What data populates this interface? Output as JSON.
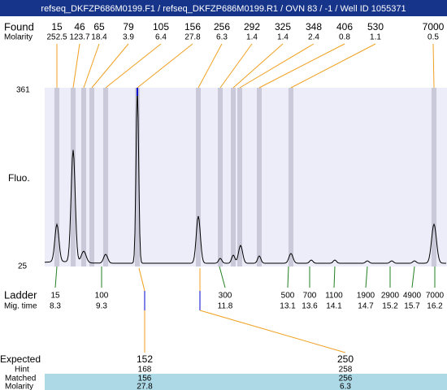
{
  "header": {
    "title": "refseq_DKFZP686M0199.F1 / refseq_DKFZP686M0199.R1 / OVN 83 / -1 / Well ID 1055371"
  },
  "found": {
    "label": "Found",
    "sizes": [
      15,
      46,
      65,
      79,
      105,
      156,
      256,
      292,
      325,
      348,
      406,
      530,
      7000
    ],
    "molarity_label": "Molarity",
    "molarity": [
      252.5,
      123.7,
      18.4,
      3.9,
      6.4,
      27.8,
      6.3,
      1.4,
      1.4,
      2.4,
      0.8,
      1.1,
      0.5
    ]
  },
  "axis": {
    "label": "Fluo.",
    "max": 361,
    "min": 25
  },
  "ladder": {
    "label": "Ladder",
    "mig_label": "Mig. time",
    "sizes": [
      15,
      100,
      300,
      500,
      700,
      1100,
      1900,
      2900,
      4900,
      7000
    ],
    "mig_times": [
      8.3,
      9.3,
      11.8,
      13.1,
      13.6,
      14.1,
      14.7,
      15.2,
      15.7,
      16.2
    ]
  },
  "expected": {
    "label": "Expected",
    "hint_label": "Hint",
    "matched_label": "Matched",
    "molarity_label": "Molarity",
    "columns": [
      {
        "expected": 152,
        "hint": 168,
        "matched": 156,
        "molarity": 27.8
      },
      {
        "expected": 250,
        "hint": 258,
        "matched": 256,
        "molarity": 6.3
      }
    ]
  }
}
